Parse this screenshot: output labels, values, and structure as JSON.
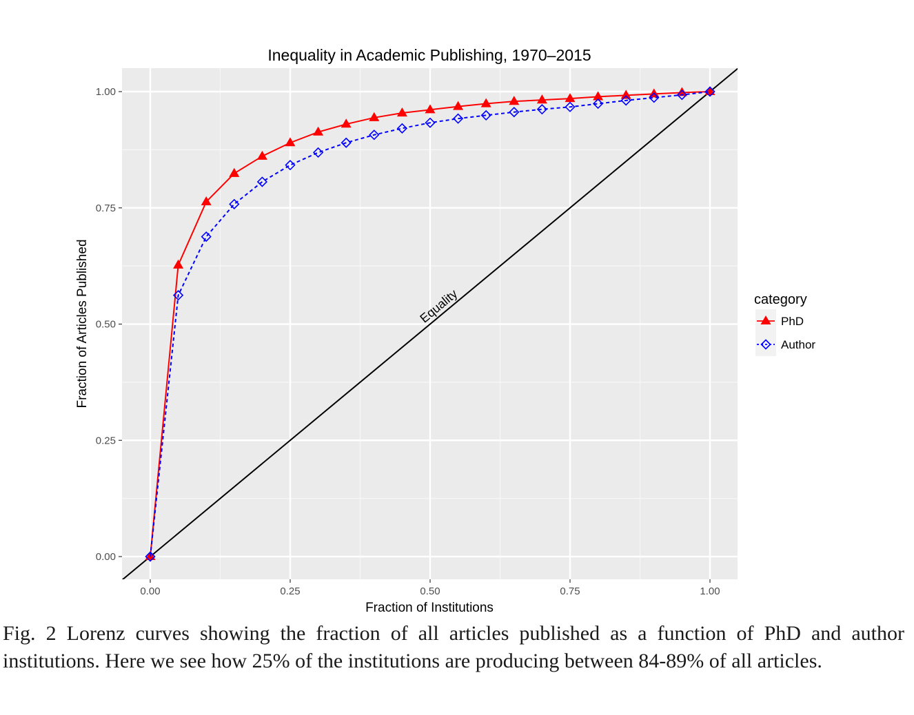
{
  "chart_data": {
    "type": "line",
    "title": "Inequality in Academic Publishing, 1970–2015",
    "xlabel": "Fraction of Institutions",
    "ylabel": "Fraction of Articles Published",
    "xlim": [
      0,
      1
    ],
    "ylim": [
      0,
      1
    ],
    "x_ticks": [
      0,
      0.25,
      0.5,
      0.75,
      1.0
    ],
    "y_ticks": [
      0,
      0.25,
      0.5,
      0.75,
      1.0
    ],
    "x_tick_labels": [
      "0.00",
      "0.25",
      "0.50",
      "0.75",
      "1.00"
    ],
    "y_tick_labels": [
      "0.00",
      "0.25",
      "0.50",
      "0.75",
      "1.00"
    ],
    "grid": true,
    "legend": {
      "title": "category",
      "placement": "right"
    },
    "x": [
      0,
      0.05,
      0.1,
      0.15,
      0.2,
      0.25,
      0.3,
      0.35,
      0.4,
      0.45,
      0.5,
      0.55,
      0.6,
      0.65,
      0.7,
      0.75,
      0.8,
      0.85,
      0.9,
      0.95,
      1.0
    ],
    "series": [
      {
        "name": "PhD",
        "color": "#ff0000",
        "marker": "triangle",
        "linestyle": "solid",
        "values": [
          0.0,
          0.627,
          0.763,
          0.824,
          0.861,
          0.89,
          0.913,
          0.93,
          0.944,
          0.954,
          0.961,
          0.968,
          0.974,
          0.979,
          0.982,
          0.985,
          0.989,
          0.992,
          0.995,
          0.998,
          1.0
        ]
      },
      {
        "name": "Author",
        "color": "#0000ff",
        "marker": "diamond-open",
        "linestyle": "dashed",
        "values": [
          0.0,
          0.562,
          0.688,
          0.758,
          0.806,
          0.842,
          0.869,
          0.89,
          0.907,
          0.921,
          0.933,
          0.942,
          0.949,
          0.956,
          0.962,
          0.967,
          0.974,
          0.981,
          0.987,
          0.993,
          1.0
        ]
      }
    ],
    "reference_line": {
      "label": "Equality",
      "from": [
        -0.05,
        -0.05
      ],
      "to": [
        1.05,
        1.05
      ],
      "color": "#000000"
    }
  },
  "caption": "Fig. 2 Lorenz curves showing the fraction of all articles published as a function of PhD and author institutions. Here we see how 25% of the institutions are producing between 84-89% of all articles."
}
